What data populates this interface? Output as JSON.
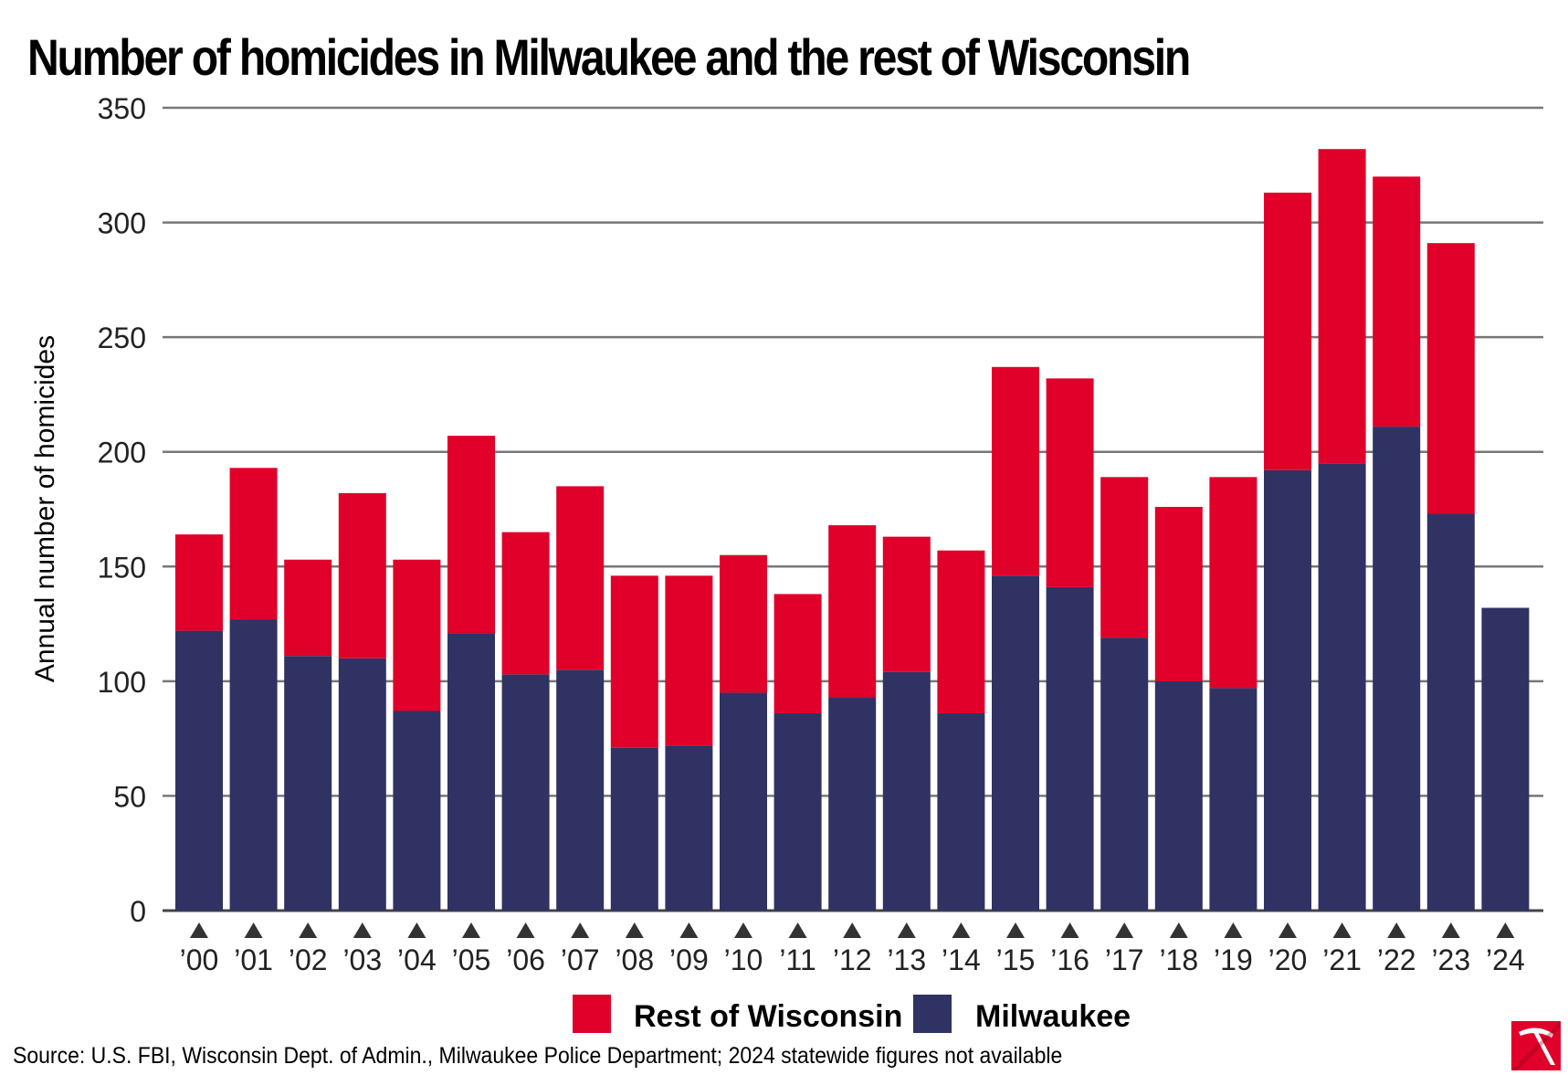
{
  "chart_data": {
    "type": "bar",
    "stacked": true,
    "title": "Number of homicides in Milwaukee and the rest of Wisconsin",
    "xlabel": "",
    "ylabel": "Annual number of homicides",
    "ylim": [
      0,
      350
    ],
    "yticks": [
      0,
      50,
      100,
      150,
      200,
      250,
      300,
      350
    ],
    "grid": true,
    "legend_position": "bottom-center",
    "categories": [
      "’00",
      "’01",
      "’02",
      "’03",
      "’04",
      "’05",
      "’06",
      "’07",
      "’08",
      "’09",
      "’10",
      "’11",
      "’12",
      "’13",
      "’14",
      "’15",
      "’16",
      "’17",
      "’18",
      "’19",
      "’20",
      "’21",
      "’22",
      "’23",
      "’24"
    ],
    "series": [
      {
        "name": "Milwaukee",
        "color": "#2f3263",
        "values": [
          122,
          127,
          111,
          110,
          87,
          121,
          103,
          105,
          71,
          72,
          95,
          86,
          93,
          104,
          86,
          146,
          141,
          119,
          100,
          97,
          192,
          195,
          211,
          173,
          132
        ]
      },
      {
        "name": "Rest of Wisconsin",
        "color": "#e0002a",
        "values": [
          42,
          66,
          42,
          72,
          66,
          86,
          62,
          80,
          75,
          74,
          60,
          52,
          75,
          59,
          71,
          91,
          91,
          70,
          76,
          92,
          121,
          137,
          109,
          118,
          null
        ]
      }
    ],
    "legend": [
      "Rest of Wisconsin",
      "Milwaukee"
    ]
  },
  "source": "Source: U.S. FBI, Wisconsin Dept. of Admin., Milwaukee Police Department; 2024 statewide figures not available",
  "colors": {
    "milwaukee": "#2f3263",
    "rest_of_wisconsin": "#e0002a",
    "gridline": "#777777",
    "marker": "#333333"
  },
  "logo_icon": "pickaxe-logo-icon"
}
